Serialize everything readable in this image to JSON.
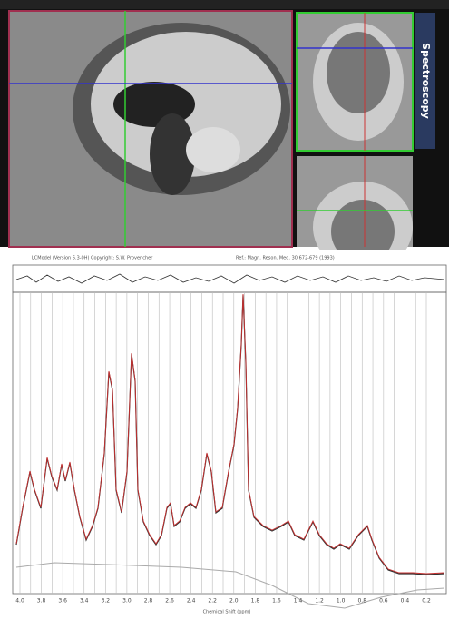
{
  "header": {
    "software": "LCModel (Version 6.3-0H) Copyright: S.W. Provencher",
    "reference": "Ref.: Magn. Reson. Med. 30:672-679 (1993)"
  },
  "side_tab": "Spectroscopy",
  "spectrum": {
    "x_ticks": [
      "4.0",
      "3.8",
      "3.6",
      "3.4",
      "3.2",
      "3.0",
      "2.8",
      "2.6",
      "2.4",
      "2.2",
      "2.0",
      "1.8",
      "1.6",
      "1.4",
      "1.2",
      "1.0",
      "0.8",
      "0.6",
      "0.4",
      "0.2"
    ],
    "x_label": "Chemical Shift (ppm)"
  }
}
